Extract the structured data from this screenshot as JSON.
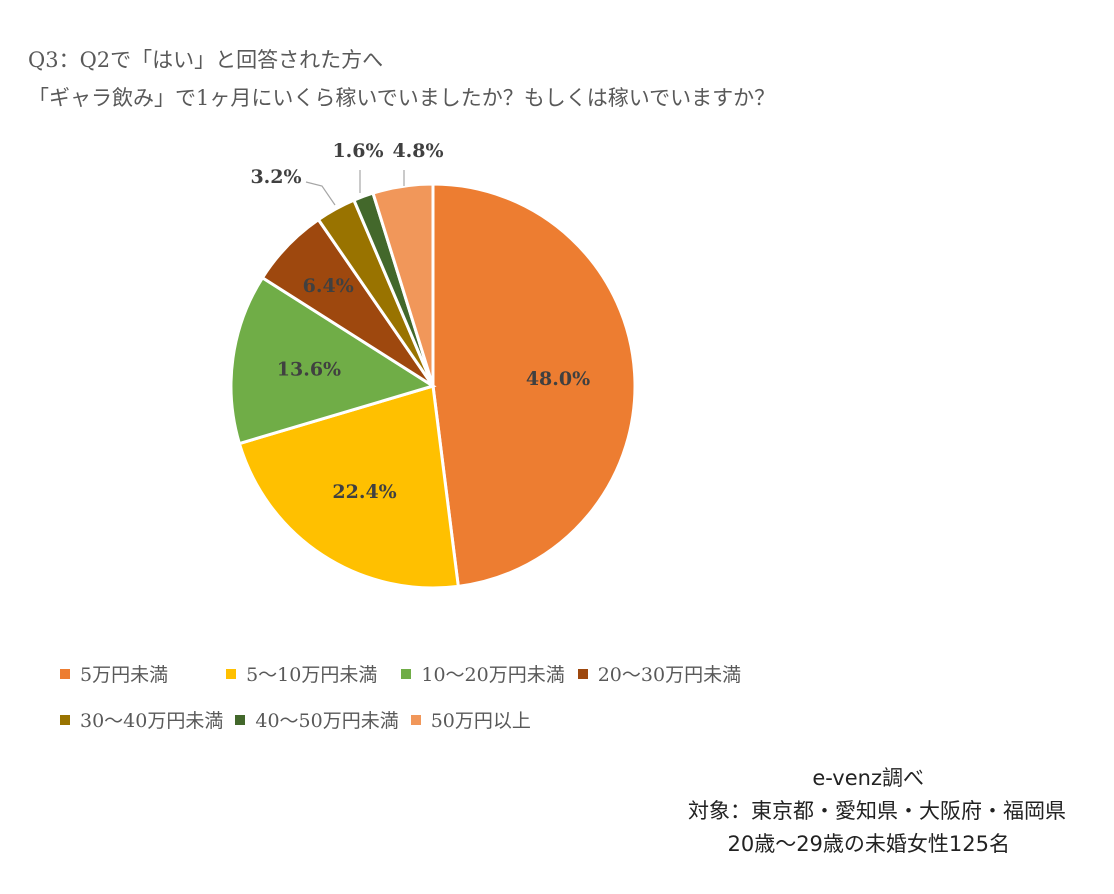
{
  "title": {
    "line1": "Q3：Q2で「はい」と回答された方へ",
    "line2": "「ギャラ飲み」で1ヶ月にいくら稼いでいましたか？もしくは稼いでいますか？"
  },
  "footer": {
    "source": "e-venz調べ",
    "target": "対象：東京都・愛知県・大阪府・福岡県",
    "sample": "20歳〜29歳の未婚女性125名"
  },
  "chart_data": {
    "type": "pie",
    "unit": "%",
    "categories": [
      "5万円未満",
      "5〜10万円未満",
      "10〜20万円未満",
      "20〜30万円未満",
      "30〜40万円未満",
      "40〜50万円未満",
      "50万円以上"
    ],
    "values": [
      48.0,
      22.4,
      13.6,
      6.4,
      3.2,
      1.6,
      4.8
    ],
    "labels": [
      "48.0%",
      "22.4%",
      "13.6%",
      "6.4%",
      "3.2%",
      "1.6%",
      "4.8%"
    ],
    "colors": [
      "#ED7D31",
      "#FFC000",
      "#70AD47",
      "#9E480E",
      "#997300",
      "#43682B",
      "#F1975A"
    ],
    "start_angle_deg": 0,
    "direction": "clockwise",
    "legend_position": "bottom"
  }
}
